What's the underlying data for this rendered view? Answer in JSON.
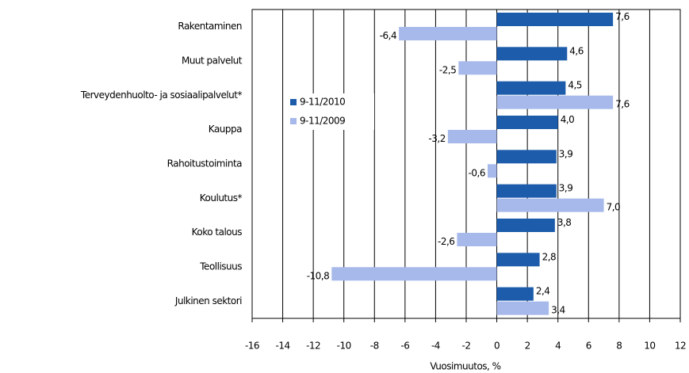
{
  "chart_data": {
    "type": "hbar",
    "categories": [
      "Rakentaminen",
      "Muut palvelut",
      "Terveydenhuolto- ja sosiaalipalvelut*",
      "Kauppa",
      "Rahoitustoiminta",
      "Koulutus*",
      "Koko talous",
      "Teollisuus",
      "Julkinen sektori"
    ],
    "series": [
      {
        "name": "9-11/2010",
        "color": "#1c5cab",
        "values": [
          7.6,
          4.6,
          4.5,
          4.0,
          3.9,
          3.9,
          3.8,
          2.8,
          2.4
        ],
        "value_labels": [
          "7,6",
          "4,6",
          "4,5",
          "4,0",
          "3,9",
          "3,9",
          "3,8",
          "2,8",
          "2,4"
        ]
      },
      {
        "name": "9-11/2009",
        "color": "#a7b9ea",
        "values": [
          -6.4,
          -2.5,
          7.6,
          -3.2,
          -0.6,
          7.0,
          -2.6,
          -10.8,
          3.4
        ],
        "value_labels": [
          "-6,4",
          "-2,5",
          "7,6",
          "-3,2",
          "-0,6",
          "7,0",
          "-2,6",
          "-10,8",
          "3,4"
        ]
      }
    ],
    "xlabel": "Vuosimuutos, %",
    "xlim": [
      -16,
      12
    ],
    "xticks": [
      -16,
      -14,
      -12,
      -10,
      -8,
      -6,
      -4,
      -2,
      0,
      2,
      4,
      6,
      8,
      10,
      12
    ],
    "grid": true,
    "legend": "upper left"
  }
}
